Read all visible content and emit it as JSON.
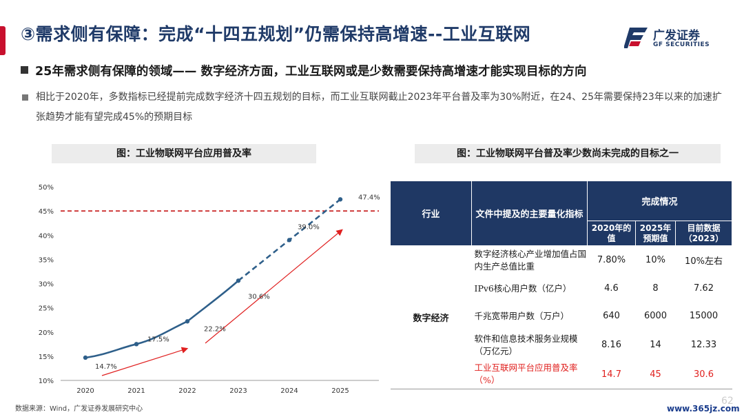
{
  "title": "③需求侧有保障：完成“十四五规划”仍需保持高增速--工业互联网",
  "logo": {
    "cn": "广发证券",
    "en": "GF SECURITIES"
  },
  "bullets": [
    "25年需求侧有保障的领域—— 数字经济方面，工业互联网或是少数需要保持高增速才能实现目标的方向",
    "相比于2020年，多数指标已经提前完成数字经济十四五规划的目标，而工业互联网截止2023年平台普及率为30%附近，在24、25年需要保持23年以来的加速扩张趋势才能有望完成45%的预期目标"
  ],
  "chart_caption": "图：工业物联网平台应用普及率",
  "table_caption": "图：工业物联网平台普及率少数尚未完成的目标之一",
  "chart_data": {
    "type": "line",
    "x": [
      "2020",
      "2021",
      "2022",
      "2023",
      "2024",
      "2025"
    ],
    "series": [
      {
        "values": [
          14.7,
          17.5,
          22.2,
          30.6,
          39.0,
          47.4
        ],
        "labels": [
          "14.7%",
          "17.5%",
          "22.2%",
          "30.6%",
          "39.0%",
          "47.4%"
        ],
        "actual_through": "2023",
        "projected_from": "2023"
      }
    ],
    "yticks": [
      "10%",
      "15%",
      "20%",
      "25%",
      "30%",
      "35%",
      "40%",
      "45%",
      "50%"
    ],
    "ylim": [
      10,
      50
    ],
    "target_line": 45,
    "colors": {
      "line": "#2e5f8a",
      "target": "#c00000",
      "arrow": "#e02020"
    }
  },
  "table": {
    "head": {
      "sector": "行业",
      "indicator": "文件中提及的主要量化指标",
      "group": "完成情况",
      "cols": [
        "2020年的值",
        "2025年预期值",
        "目前数据（2023）"
      ]
    },
    "sector": "数字经济",
    "rows": [
      {
        "name": "数字经济核心产业增加值占国内生产总值比重",
        "v2020": "7.80%",
        "v2025": "10%",
        "v2023": "10%左右"
      },
      {
        "name": "IPv6核心用户数（亿户）",
        "v2020": "4.6",
        "v2025": "8",
        "v2023": "7.62"
      },
      {
        "name": "千兆宽带用户数（万户）",
        "v2020": "640",
        "v2025": "6000",
        "v2023": "15000"
      },
      {
        "name": "软件和信息技术服务业规模（万亿元）",
        "v2020": "8.16",
        "v2025": "14",
        "v2023": "12.33"
      },
      {
        "name": "工业互联网平台应用普及率（%）",
        "v2020": "14.7",
        "v2025": "45",
        "v2023": "30.6"
      }
    ]
  },
  "source": "数据来源：Wind，广发证券发展研究中心",
  "watermark": "www.365jz.com",
  "page_number": "62"
}
